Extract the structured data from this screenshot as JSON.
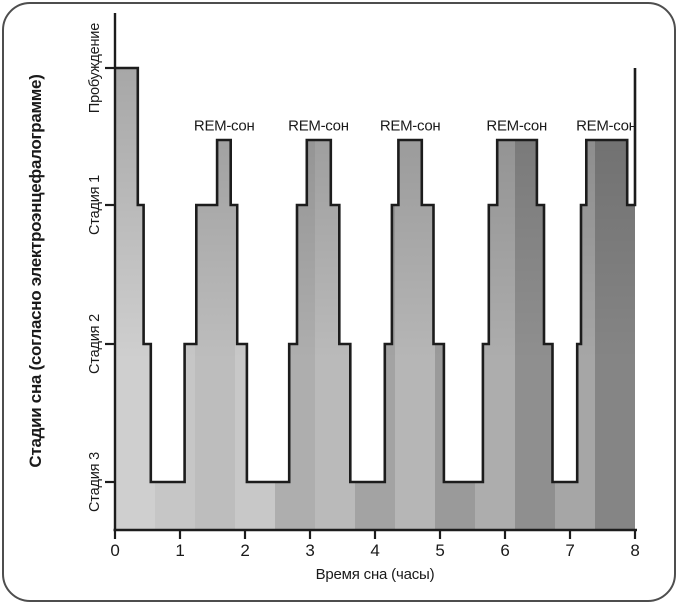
{
  "chart_data": {
    "type": "area",
    "chart_kind": "hypnogram-step-area",
    "xlabel": "Время сна (часы)",
    "ylabel": "Стадии сна (согласно электроэнцефалограмме)",
    "x_ticks": [
      "0",
      "1",
      "2",
      "3",
      "4",
      "5",
      "6",
      "7",
      "8"
    ],
    "x_range_hours": [
      0,
      8
    ],
    "grid": "off",
    "y_categories": [
      {
        "id": "W",
        "label": "Пробуждение"
      },
      {
        "id": "S1",
        "label": "Стадия 1"
      },
      {
        "id": "S2",
        "label": "Стадия 2"
      },
      {
        "id": "S3",
        "label": "Стадия 3"
      }
    ],
    "rem_labels": [
      {
        "text": "REM-сон",
        "center_hour": 1.68
      },
      {
        "text": "REM-сон",
        "center_hour": 3.13
      },
      {
        "text": "REM-сон",
        "center_hour": 4.54
      },
      {
        "text": "REM-сон",
        "center_hour": 6.18
      },
      {
        "text": "REM-сон",
        "center_hour": 7.56
      }
    ],
    "segments_hours": [
      [
        0.0,
        0.35,
        "W"
      ],
      [
        0.35,
        0.44,
        "S1"
      ],
      [
        0.44,
        0.55,
        "S2"
      ],
      [
        0.55,
        1.07,
        "S3"
      ],
      [
        1.07,
        1.25,
        "S2"
      ],
      [
        1.25,
        1.57,
        "S1"
      ],
      [
        1.57,
        1.78,
        "REM"
      ],
      [
        1.78,
        1.88,
        "S1"
      ],
      [
        1.88,
        2.03,
        "S2"
      ],
      [
        2.03,
        2.68,
        "S3"
      ],
      [
        2.68,
        2.8,
        "S2"
      ],
      [
        2.8,
        2.95,
        "S1"
      ],
      [
        2.95,
        3.32,
        "REM"
      ],
      [
        3.32,
        3.45,
        "S1"
      ],
      [
        3.45,
        3.62,
        "S2"
      ],
      [
        3.62,
        4.15,
        "S3"
      ],
      [
        4.15,
        4.26,
        "S2"
      ],
      [
        4.26,
        4.36,
        "S1"
      ],
      [
        4.36,
        4.72,
        "REM"
      ],
      [
        4.72,
        4.9,
        "S1"
      ],
      [
        4.9,
        5.06,
        "S2"
      ],
      [
        5.06,
        5.66,
        "S3"
      ],
      [
        5.66,
        5.75,
        "S2"
      ],
      [
        5.75,
        5.88,
        "S1"
      ],
      [
        5.88,
        6.49,
        "REM"
      ],
      [
        6.49,
        6.6,
        "S1"
      ],
      [
        6.6,
        6.73,
        "S2"
      ],
      [
        6.73,
        7.11,
        "S3"
      ],
      [
        7.11,
        7.17,
        "S2"
      ],
      [
        7.17,
        7.25,
        "S1"
      ],
      [
        7.25,
        7.88,
        "REM"
      ],
      [
        7.88,
        8.0,
        "S1"
      ]
    ],
    "final_rise_to": "W"
  },
  "colors": {
    "curve_stroke": "#1c1c1c",
    "axis_stroke": "#1c1c1c",
    "text": "#1a1a1a",
    "frame_border": "#4e4e4e",
    "background": "#ffffff",
    "fill_bands": [
      "#cfcfcf",
      "#c6c6c6",
      "#bdbdbd",
      "#c8c8c8",
      "#aeaeae",
      "#bababa",
      "#a3a3a3",
      "#b6b6b6",
      "#9a9a9a",
      "#adadad",
      "#8f8f8f",
      "#a6a6a6",
      "#858585"
    ]
  }
}
